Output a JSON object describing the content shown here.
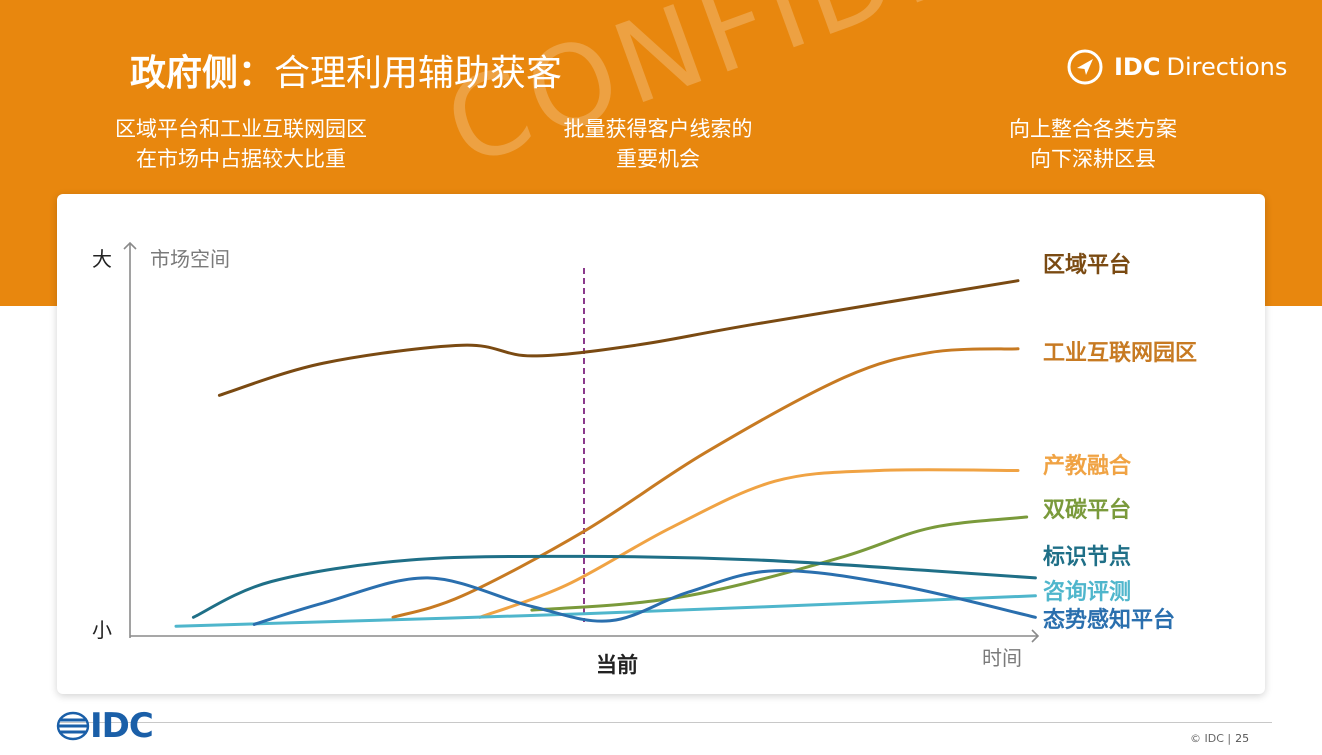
{
  "slide": {
    "title_bold": "政府侧：",
    "title_rest": "合理利用辅助获客",
    "brand_bold": "IDC",
    "brand_light": "Directions",
    "watermark": "CONFIDENTIAL",
    "subtitles": [
      {
        "line1": "区域平台和工业互联网园区",
        "line2": "在市场中占据较大比重"
      },
      {
        "line1": "批量获得客户线索的",
        "line2": "重要机会"
      },
      {
        "line1": "向上整合各类方案",
        "line2": "向下深耕区县"
      }
    ],
    "footer": {
      "logo_text": "IDC",
      "copyright": "© IDC |",
      "page": "25"
    }
  },
  "chart_data": {
    "type": "line",
    "title": "",
    "y_axis": {
      "label": "市场空间",
      "top_label": "大",
      "bottom_label": "小",
      "range": [
        0,
        100
      ]
    },
    "x_axis": {
      "label": "时间",
      "marker_label": "当前",
      "marker_x": 50,
      "range": [
        0,
        100
      ]
    },
    "grid": false,
    "legend": "inline-right",
    "series": [
      {
        "name": "区域平台",
        "color": "#7A4A12",
        "points": [
          [
            8,
            65
          ],
          [
            20,
            74
          ],
          [
            36,
            79
          ],
          [
            44,
            76
          ],
          [
            56,
            79
          ],
          [
            70,
            85
          ],
          [
            100,
            97
          ]
        ]
      },
      {
        "name": "工业互联网园区",
        "color": "#C77A22",
        "points": [
          [
            28,
            3
          ],
          [
            36,
            9
          ],
          [
            50,
            27
          ],
          [
            64,
            49
          ],
          [
            80,
            70
          ],
          [
            90,
            77
          ],
          [
            100,
            78
          ]
        ]
      },
      {
        "name": "产教融合",
        "color": "#F0A344",
        "points": [
          [
            38,
            3
          ],
          [
            48,
            12
          ],
          [
            60,
            28
          ],
          [
            72,
            41
          ],
          [
            84,
            44
          ],
          [
            100,
            44
          ]
        ]
      },
      {
        "name": "双碳平台",
        "color": "#7A9A3B",
        "points": [
          [
            44,
            5
          ],
          [
            56,
            7
          ],
          [
            66,
            11
          ],
          [
            80,
            20
          ],
          [
            90,
            28
          ],
          [
            101,
            31
          ]
        ]
      },
      {
        "name": "标识节点",
        "color": "#1F6F87",
        "points": [
          [
            5,
            3
          ],
          [
            14,
            13
          ],
          [
            30,
            19
          ],
          [
            50,
            20
          ],
          [
            70,
            19
          ],
          [
            90,
            16
          ],
          [
            102,
            14
          ]
        ]
      },
      {
        "name": "咨询评测",
        "color": "#4FB6CC",
        "points": [
          [
            3,
            0.5
          ],
          [
            50,
            4
          ],
          [
            102,
            9
          ]
        ]
      },
      {
        "name": "态势感知平台",
        "color": "#2A6FAE",
        "points": [
          [
            12,
            1
          ],
          [
            20,
            7
          ],
          [
            32,
            14
          ],
          [
            44,
            6
          ],
          [
            53,
            2
          ],
          [
            62,
            10
          ],
          [
            72,
            16
          ],
          [
            86,
            12
          ],
          [
            102,
            3
          ]
        ]
      }
    ]
  }
}
